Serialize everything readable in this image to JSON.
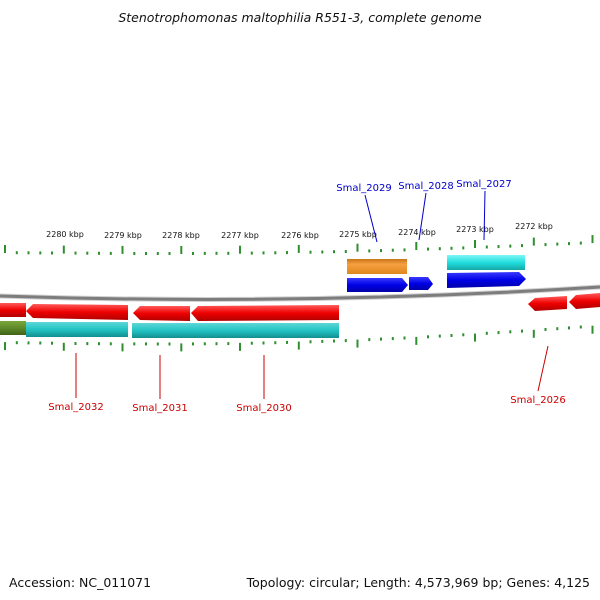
{
  "title": "Stenotrophomonas maltophilia R551-3, complete genome",
  "footer": {
    "accession": "Accession: NC_011071",
    "stats": "Topology: circular; Length: 4,573,969 bp; Genes: 4,125"
  },
  "colors": {
    "backbone": "#8c8c8c",
    "gene_forward": "#0000e6",
    "gene_reverse": "#ee0000",
    "rna_forward": "#f08c1c",
    "cds_forward": "#22ecec",
    "cds_reverse": "#22c4c4",
    "other_reverse": "#5f8a2a",
    "tick": "#2f8f2f",
    "label_forward": "#0000cc",
    "label_reverse": "#cc0000"
  },
  "kbp_labels": [
    "2280 kbp",
    "2279 kbp",
    "2278 kbp",
    "2277 kbp",
    "2276 kbp",
    "2275 kbp",
    "2274 kbp",
    "2273 kbp",
    "2272 kbp"
  ],
  "forward_gene_labels": [
    "Smal_2029",
    "Smal_2028",
    "Smal_2027"
  ],
  "reverse_gene_labels": [
    "Smal_2032",
    "Smal_2031",
    "Smal_2030",
    "Smal_2026"
  ]
}
